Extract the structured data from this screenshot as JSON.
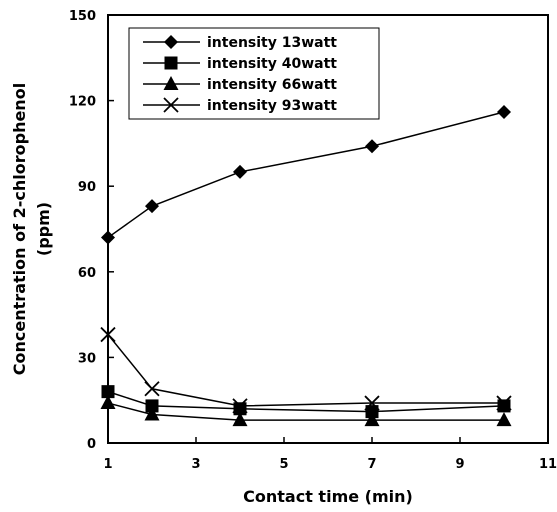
{
  "chart_data": {
    "type": "line",
    "title": "",
    "xlabel": "Contact time (min)",
    "ylabel_line1": "Concentration of 2-chlorophenol",
    "ylabel_line2": "(ppm)",
    "xlim": [
      1,
      11
    ],
    "ylim": [
      0,
      150
    ],
    "x_ticks": [
      1,
      3,
      5,
      7,
      9,
      11
    ],
    "y_ticks": [
      0,
      30,
      60,
      90,
      120,
      150
    ],
    "grid": false,
    "legend_position": "top-left",
    "series": [
      {
        "name": "intensity 13watt",
        "marker": "diamond",
        "x": [
          1,
          2,
          4,
          7,
          10
        ],
        "y": [
          72,
          83,
          95,
          104,
          116
        ]
      },
      {
        "name": "intensity 40watt",
        "marker": "square",
        "x": [
          1,
          2,
          4,
          7,
          10
        ],
        "y": [
          18,
          13,
          12,
          11,
          13
        ]
      },
      {
        "name": "intensity 66watt",
        "marker": "triangle",
        "x": [
          1,
          2,
          4,
          7,
          10
        ],
        "y": [
          14,
          10,
          8,
          8,
          8
        ]
      },
      {
        "name": "intensity 93watt",
        "marker": "x",
        "x": [
          1,
          2,
          4,
          7,
          10
        ],
        "y": [
          38,
          19,
          13,
          14,
          14
        ]
      }
    ],
    "colors": {
      "line": "#000000",
      "background": "#ffffff"
    }
  }
}
